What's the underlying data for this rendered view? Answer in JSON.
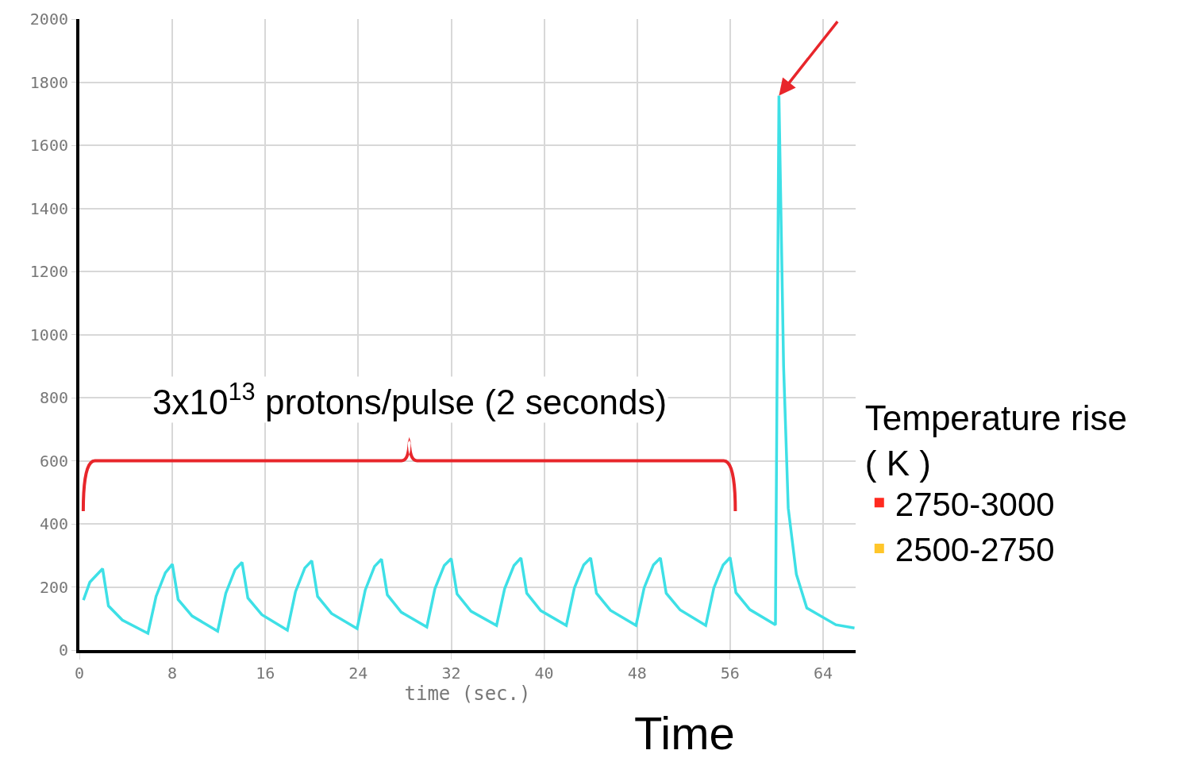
{
  "chart_data": {
    "type": "line",
    "xlabel": "time (sec.)",
    "legend_title": "Temperature rise\n( K )",
    "annotations": [
      "3x10$^{13}$ protons/pulse (2 seconds)",
      "Time"
    ],
    "xlim": [
      0,
      66.8
    ],
    "ylim": [
      0,
      2000
    ],
    "xticks": [
      0,
      8,
      16,
      24,
      32,
      40,
      48,
      56,
      64
    ],
    "yticks": [
      0,
      200,
      400,
      600,
      800,
      1000,
      1200,
      1400,
      1600,
      1800,
      2000
    ],
    "grid": true,
    "legend": "right",
    "marker": "none",
    "line_style": "solid",
    "series": [
      {
        "color": "#3ee0e6",
        "x": [
          0.35,
          0.9,
          2.0,
          2.5,
          3.7,
          5.9,
          6.6,
          7.4,
          8.0,
          8.5,
          9.7,
          11.9,
          12.6,
          13.4,
          14.0,
          14.5,
          15.7,
          17.9,
          18.6,
          19.4,
          20.0,
          20.5,
          21.7,
          23.9,
          24.6,
          25.4,
          26.0,
          26.5,
          27.7,
          29.9,
          30.6,
          31.4,
          32.0,
          32.5,
          33.7,
          35.9,
          36.6,
          37.4,
          38.0,
          38.5,
          39.7,
          41.9,
          42.6,
          43.4,
          44.0,
          44.5,
          45.7,
          47.9,
          48.6,
          49.4,
          50.0,
          50.5,
          51.7,
          53.9,
          54.6,
          55.4,
          56.0,
          56.5,
          57.7,
          59.9,
          60.2,
          60.6,
          61.0,
          61.7,
          62.6,
          65.1,
          66.7
        ],
        "values": [
          158,
          215,
          258,
          140,
          95,
          53,
          170,
          245,
          272,
          160,
          108,
          60,
          180,
          255,
          278,
          165,
          112,
          63,
          185,
          260,
          283,
          170,
          116,
          68,
          190,
          265,
          288,
          175,
          120,
          73,
          195,
          268,
          290,
          178,
          123,
          78,
          195,
          268,
          292,
          180,
          125,
          78,
          197,
          270,
          292,
          180,
          126,
          78,
          197,
          270,
          292,
          180,
          127,
          78,
          197,
          270,
          293,
          182,
          128,
          80,
          1757,
          900,
          450,
          240,
          133,
          80,
          70
        ]
      },
      {
        "name": "2750-3000",
        "type": "scatter",
        "marker": "square",
        "color": "#ff2a1f",
        "values": [
          null
        ]
      },
      {
        "name": "2500-2750",
        "type": "scatter",
        "marker": "square",
        "color": "#ffc62a",
        "values": [
          null
        ]
      }
    ]
  }
}
